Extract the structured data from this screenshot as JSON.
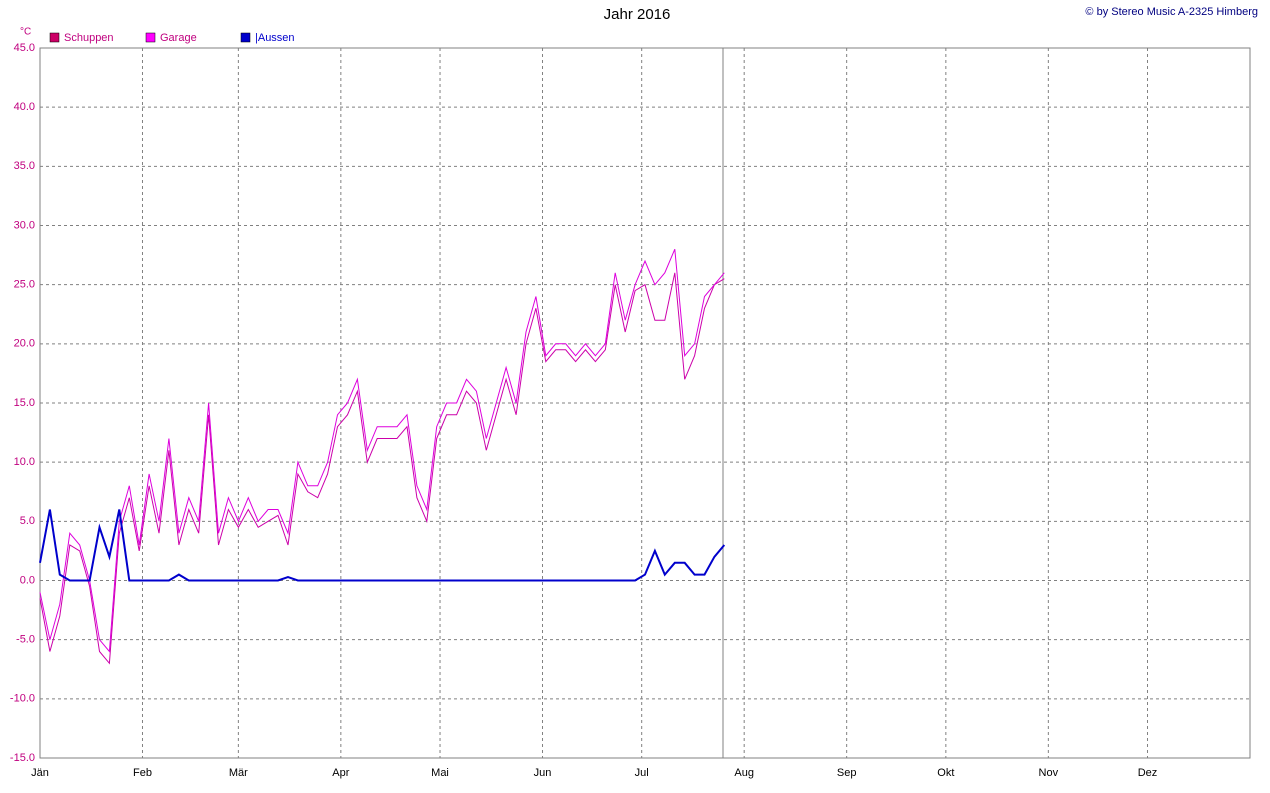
{
  "chart_data": {
    "type": "line",
    "title": "Jahr 2016",
    "credit": "© by Stereo Music A-2325  Himberg",
    "y_unit": "°C",
    "x": [
      0,
      3,
      6,
      9,
      12,
      15,
      18,
      21,
      24,
      27,
      30,
      33,
      36,
      39,
      42,
      45,
      48,
      51,
      54,
      57,
      60,
      63,
      66,
      69,
      72,
      75,
      78,
      81,
      84,
      87,
      90,
      93,
      96,
      99,
      102,
      105,
      108,
      111,
      114,
      117,
      120,
      123,
      126,
      129,
      132,
      135,
      138,
      141,
      144,
      147,
      150,
      153,
      156,
      159,
      162,
      165,
      168,
      171,
      174,
      177,
      180,
      183,
      186,
      189,
      192,
      195,
      198,
      201,
      204,
      207
    ],
    "series": [
      {
        "name": "Schuppen",
        "color": "#cc0066",
        "line_color": "#cc00aa",
        "values": [
          -1.5,
          -6,
          -3,
          3,
          2.5,
          -0.5,
          -6,
          -7,
          4,
          7,
          2.5,
          8,
          4,
          11,
          3,
          6,
          4,
          14,
          3,
          6,
          4.5,
          6,
          4.5,
          5,
          5.5,
          3,
          9,
          7.5,
          7,
          9,
          13,
          14,
          16,
          10,
          12,
          12,
          12,
          13,
          7,
          5,
          12,
          14,
          14,
          16,
          15,
          11,
          14,
          17,
          14,
          20,
          23,
          18.5,
          19.5,
          19.5,
          18.5,
          19.5,
          18.5,
          19.5,
          25,
          21,
          24.5,
          25,
          22,
          22,
          26,
          17,
          19,
          23,
          25,
          25.5
        ]
      },
      {
        "name": "Garage",
        "color": "#ff00ff",
        "line_color": "#dd00dd",
        "values": [
          -1,
          -5,
          -2,
          4,
          3,
          0,
          -5,
          -6,
          5,
          8,
          3,
          9,
          5,
          12,
          4,
          7,
          5,
          15,
          4,
          7,
          5,
          7,
          5,
          6,
          6,
          4,
          10,
          8,
          8,
          10,
          14,
          15,
          17,
          11,
          13,
          13,
          13,
          14,
          8,
          6,
          13,
          15,
          15,
          17,
          16,
          12,
          15,
          18,
          15,
          21,
          24,
          19,
          20,
          20,
          19,
          20,
          19,
          20,
          26,
          22,
          25,
          27,
          25,
          26,
          28,
          19,
          20,
          24,
          25,
          26
        ]
      },
      {
        "name": "|Aussen",
        "color": "#0000cc",
        "line_color": "#0000cc",
        "values": [
          1.5,
          6,
          0.5,
          0,
          0,
          0,
          4.5,
          2,
          6,
          0,
          0,
          0,
          0,
          0,
          0.5,
          0,
          0,
          0,
          0,
          0,
          0,
          0,
          0,
          0,
          0,
          0.3,
          0,
          0,
          0,
          0,
          0,
          0,
          0,
          0,
          0,
          0,
          0,
          0,
          0,
          0,
          0,
          0,
          0,
          0,
          0,
          0,
          0,
          0,
          0,
          0,
          0,
          0,
          0,
          0,
          0,
          0,
          0,
          0,
          0,
          0,
          0,
          0.5,
          2.5,
          0.5,
          1.5,
          1.5,
          0.5,
          0.5,
          2,
          3
        ]
      }
    ],
    "xlim": [
      0,
      366
    ],
    "xticks": [
      {
        "value": 0,
        "label": "Jän"
      },
      {
        "value": 31,
        "label": "Feb"
      },
      {
        "value": 60,
        "label": "Mär"
      },
      {
        "value": 91,
        "label": "Apr"
      },
      {
        "value": 121,
        "label": "Mai"
      },
      {
        "value": 152,
        "label": "Jun"
      },
      {
        "value": 182,
        "label": "Jul"
      },
      {
        "value": 213,
        "label": "Aug"
      },
      {
        "value": 244,
        "label": "Sep"
      },
      {
        "value": 274,
        "label": "Okt"
      },
      {
        "value": 305,
        "label": "Nov"
      },
      {
        "value": 335,
        "label": "Dez"
      }
    ],
    "ylim": [
      -15,
      45
    ],
    "yticks": [
      {
        "value": -15,
        "label": "-15.0"
      },
      {
        "value": -10,
        "label": "-10.0"
      },
      {
        "value": -5,
        "label": "-5.0"
      },
      {
        "value": 0,
        "label": "0.0"
      },
      {
        "value": 5,
        "label": "5.0"
      },
      {
        "value": 10,
        "label": "10.0"
      },
      {
        "value": 15,
        "label": "15.0"
      },
      {
        "value": 20,
        "label": "20.0"
      },
      {
        "value": 25,
        "label": "25.0"
      },
      {
        "value": 30,
        "label": "30.0"
      },
      {
        "value": 35,
        "label": "35.0"
      },
      {
        "value": 40,
        "label": "40.0"
      },
      {
        "value": 45,
        "label": "45.0"
      }
    ],
    "grid": true
  }
}
